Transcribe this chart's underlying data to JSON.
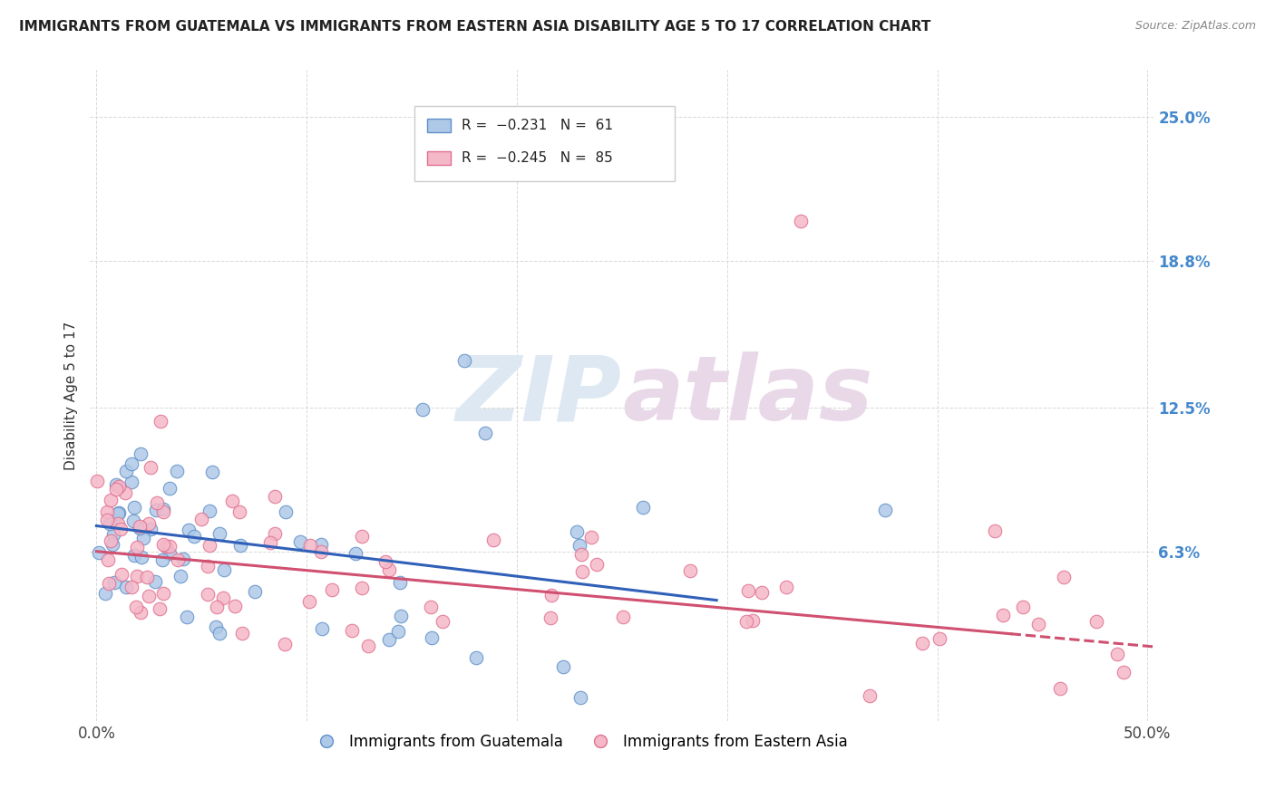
{
  "title": "IMMIGRANTS FROM GUATEMALA VS IMMIGRANTS FROM EASTERN ASIA DISABILITY AGE 5 TO 17 CORRELATION CHART",
  "source": "Source: ZipAtlas.com",
  "ylabel": "Disability Age 5 to 17",
  "xlim": [
    -0.003,
    0.503
  ],
  "ylim": [
    -0.01,
    0.27
  ],
  "xticks": [
    0.0,
    0.1,
    0.2,
    0.3,
    0.4,
    0.5
  ],
  "xtick_labels": [
    "0.0%",
    "",
    "",
    "",
    "",
    "50.0%"
  ],
  "ytick_vals_right": [
    0.063,
    0.125,
    0.188,
    0.25
  ],
  "ytick_labels_right": [
    "6.3%",
    "12.5%",
    "18.8%",
    "25.0%"
  ],
  "guatemala_fill": "#aec8e8",
  "guatemala_edge": "#6090c8",
  "eastern_asia_fill": "#f5b8c8",
  "eastern_asia_edge": "#e07090",
  "trend_guat_color": "#3060b8",
  "trend_east_color": "#d05070",
  "watermark_text": "ZIPatlas",
  "watermark_color": "#e0e8f0",
  "watermark_zip_color": "#d8e4ee",
  "background_color": "#ffffff",
  "grid_color": "#d8d8d8",
  "right_tick_color": "#4488cc",
  "legend_box_color": "#f8f8f8",
  "legend_edge_color": "#cccccc",
  "guat_legend_fill": "#aec8e8",
  "guat_legend_edge": "#6090c8",
  "east_legend_fill": "#f5b8c8",
  "east_legend_edge": "#e07090",
  "trend_guat_start_x": 0.0,
  "trend_guat_end_x": 0.295,
  "trend_guat_start_y": 0.074,
  "trend_guat_end_y": 0.042,
  "trend_east_solid_start_x": 0.0,
  "trend_east_solid_end_x": 0.435,
  "trend_east_dash_start_x": 0.435,
  "trend_east_dash_end_x": 0.503,
  "trend_east_start_y": 0.063,
  "trend_east_end_y": 0.022
}
